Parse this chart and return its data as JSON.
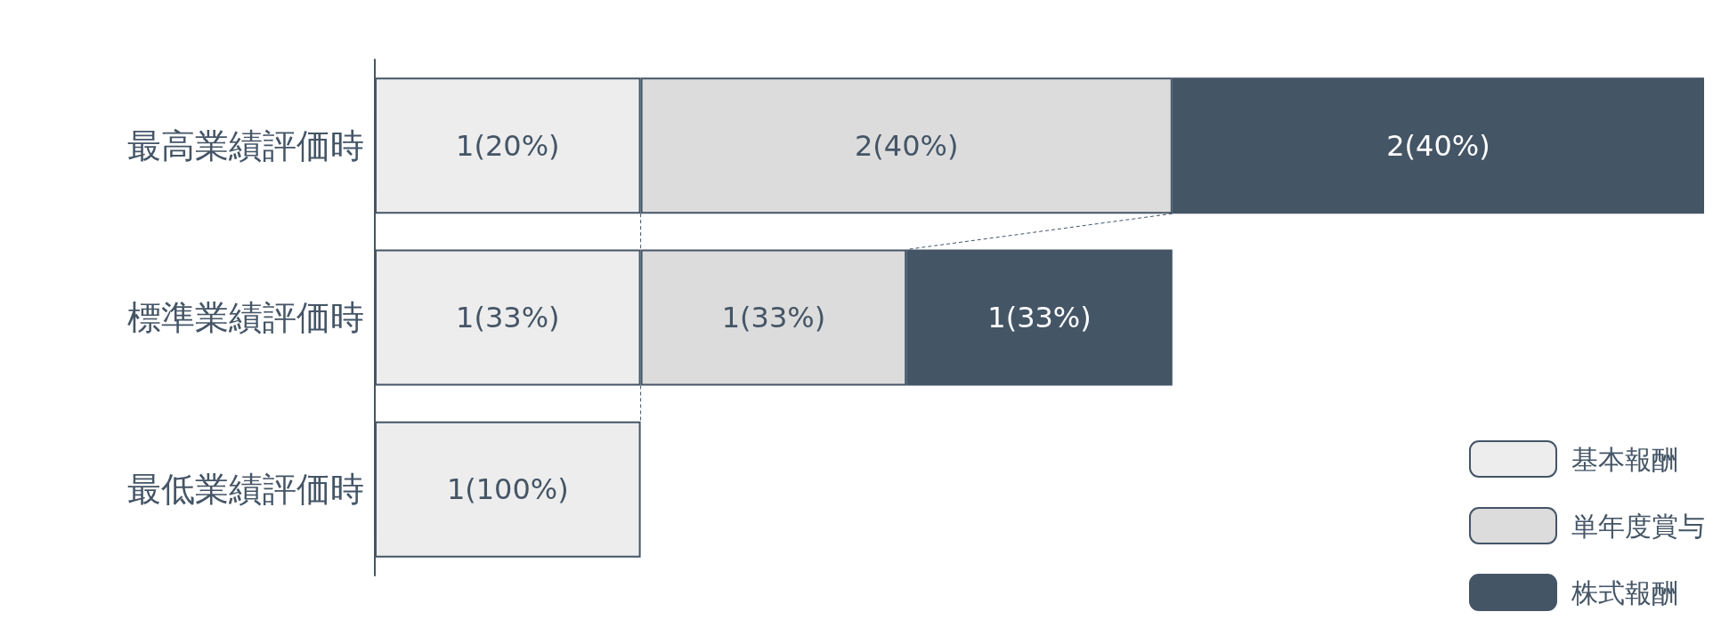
{
  "chart_data": {
    "type": "bar",
    "orientation": "horizontal",
    "stacked": true,
    "categories": [
      "最高業績評価時",
      "標準業績評価時",
      "最低業績評価時"
    ],
    "xlim": [
      0,
      5
    ],
    "tick_labels": "y",
    "grid": false,
    "legend": "bottom right",
    "series": [
      {
        "name": "基本報酬",
        "color": "#ededed",
        "values": [
          1,
          1,
          1
        ],
        "value_labels": [
          "1(20%)",
          "1(33%)",
          "1(100%)"
        ]
      },
      {
        "name": "単年度賞与",
        "color": "#dcdcdc",
        "values": [
          2,
          1,
          null
        ],
        "value_labels": [
          "2(40%)",
          "1(33%)",
          null
        ]
      },
      {
        "name": "株式報酬",
        "color": "#445566",
        "values": [
          2,
          1,
          null
        ],
        "value_labels": [
          "2(40%)",
          "1(33%)",
          null
        ]
      }
    ]
  }
}
